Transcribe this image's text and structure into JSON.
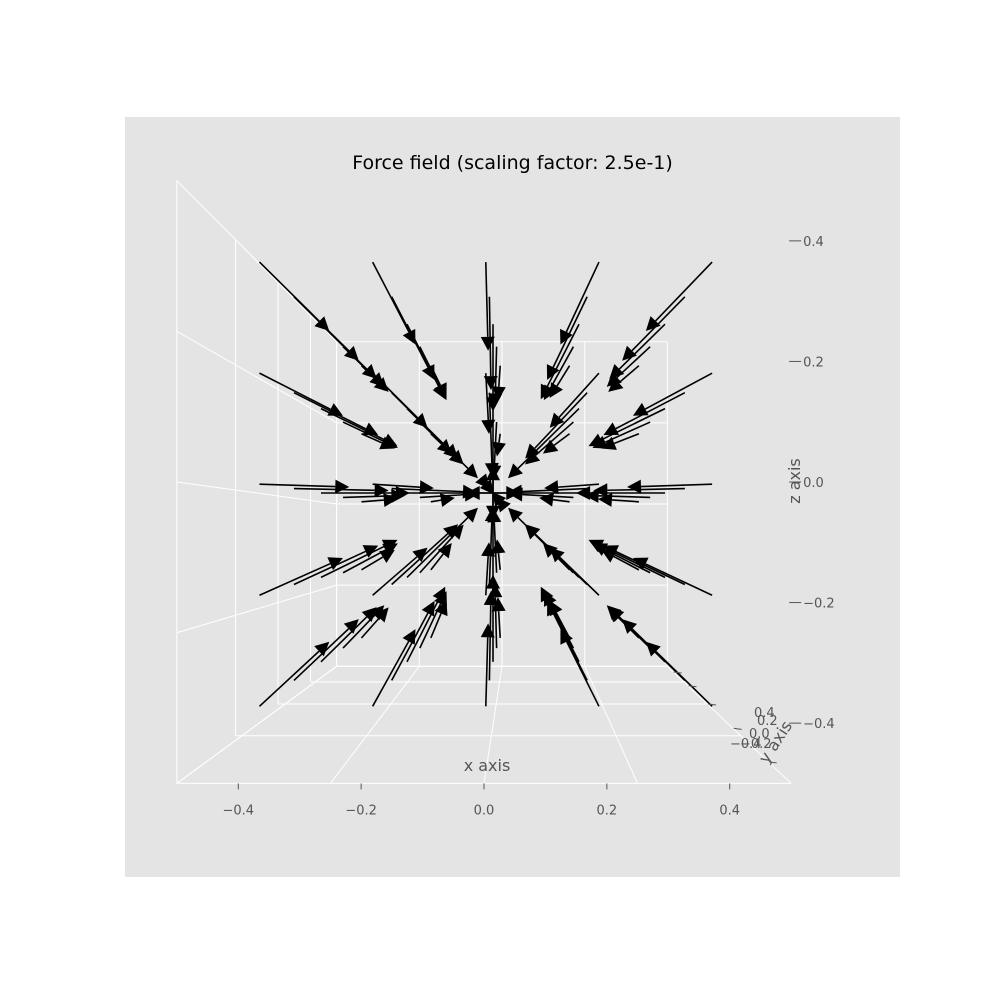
{
  "chart_data": {
    "type": "quiver3d",
    "title": "Force field (scaling factor: 2.5e-1)",
    "xlabel": "x axis",
    "ylabel": "y axis",
    "zlabel": "z axis",
    "xlim": [
      -0.5,
      0.5
    ],
    "ylim": [
      -0.5,
      0.5
    ],
    "zlim": [
      -0.5,
      0.5
    ],
    "x_ticks": [
      "−0.4",
      "−0.2",
      "0.0",
      "0.2",
      "0.4"
    ],
    "y_ticks": [
      "−0.4",
      "−0.2",
      "0.0",
      "0.2",
      "0.4"
    ],
    "z_ticks": [
      "−0.4",
      "−0.2",
      "0.0",
      "0.2",
      "0.4"
    ],
    "grid": true,
    "grid_positions": [
      -0.5,
      -0.25,
      0.0,
      0.25,
      0.5
    ],
    "scaling_factor": 0.25,
    "field": "radial, pointing toward origin",
    "arrow_color": "#000000",
    "pane_color": "#e4e4e4",
    "grid_color": "#ffffff"
  }
}
